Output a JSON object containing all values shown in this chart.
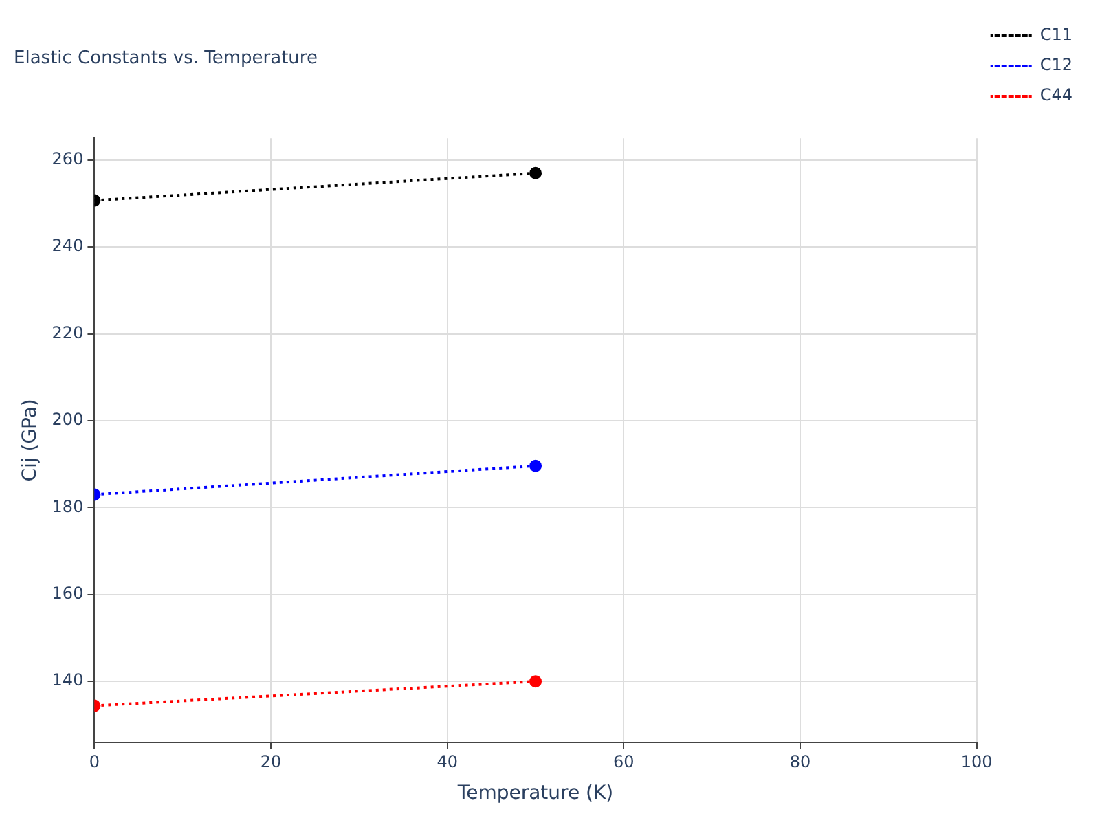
{
  "chart_data": {
    "type": "line",
    "title": "Elastic Constants vs. Temperature",
    "xlabel": "Temperature (K)",
    "ylabel": "Cij (GPa)",
    "x": [
      0,
      50
    ],
    "series": [
      {
        "name": "C11",
        "color": "#000000",
        "values": [
          250.7,
          257.0
        ]
      },
      {
        "name": "C12",
        "color": "#0000ff",
        "values": [
          183.0,
          189.6
        ]
      },
      {
        "name": "C44",
        "color": "#ff0000",
        "values": [
          134.4,
          140.0
        ]
      }
    ],
    "xlim": [
      0,
      100
    ],
    "xticks": [
      0,
      20,
      40,
      60,
      80,
      100
    ],
    "ylim": [
      126,
      265
    ],
    "yticks": [
      140,
      160,
      180,
      200,
      220,
      240,
      260
    ],
    "grid": true,
    "legend": "top right",
    "marker": "circle",
    "line_style": "dotted"
  }
}
